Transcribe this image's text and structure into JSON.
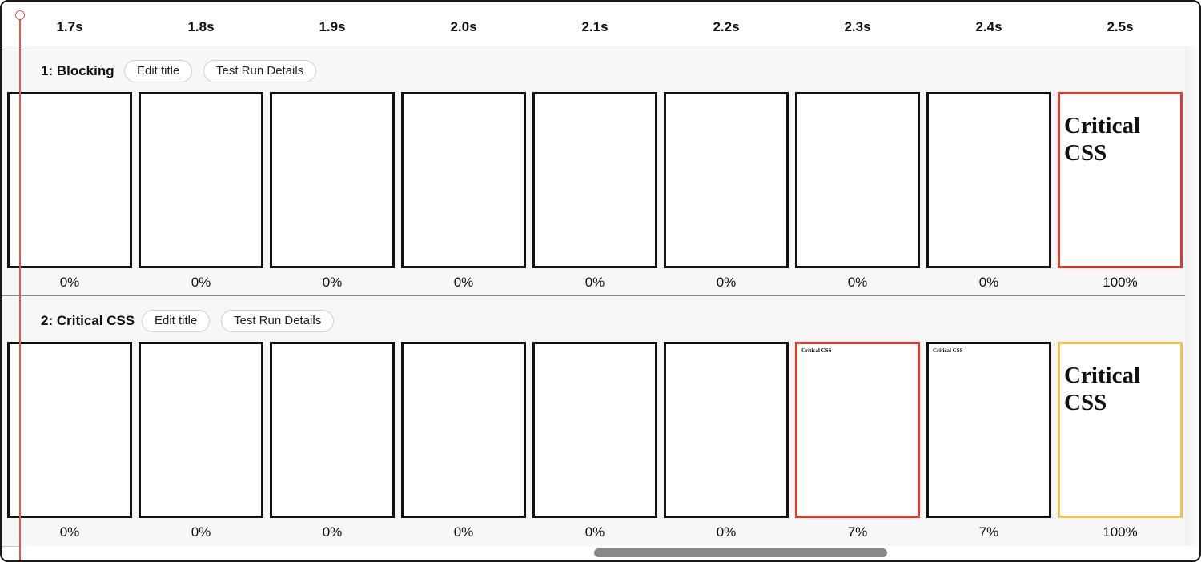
{
  "timeline": {
    "ticks": [
      "1.7s",
      "1.8s",
      "1.9s",
      "2.0s",
      "2.1s",
      "2.2s",
      "2.3s",
      "2.4s",
      "2.5s"
    ]
  },
  "rows": [
    {
      "title": "1: Blocking",
      "edit_label": "Edit title",
      "details_label": "Test Run Details",
      "frames": [
        {
          "percent": "0%",
          "border": "black",
          "content": ""
        },
        {
          "percent": "0%",
          "border": "black",
          "content": ""
        },
        {
          "percent": "0%",
          "border": "black",
          "content": ""
        },
        {
          "percent": "0%",
          "border": "black",
          "content": ""
        },
        {
          "percent": "0%",
          "border": "black",
          "content": ""
        },
        {
          "percent": "0%",
          "border": "black",
          "content": ""
        },
        {
          "percent": "0%",
          "border": "black",
          "content": ""
        },
        {
          "percent": "0%",
          "border": "black",
          "content": ""
        },
        {
          "percent": "100%",
          "border": "red",
          "content": "Critical CSS"
        }
      ]
    },
    {
      "title": "2: Critical CSS",
      "edit_label": "Edit title",
      "details_label": "Test Run Details",
      "frames": [
        {
          "percent": "0%",
          "border": "black",
          "content": ""
        },
        {
          "percent": "0%",
          "border": "black",
          "content": ""
        },
        {
          "percent": "0%",
          "border": "black",
          "content": ""
        },
        {
          "percent": "0%",
          "border": "black",
          "content": ""
        },
        {
          "percent": "0%",
          "border": "black",
          "content": ""
        },
        {
          "percent": "0%",
          "border": "black",
          "content": ""
        },
        {
          "percent": "7%",
          "border": "red",
          "content": "Critical CSS"
        },
        {
          "percent": "7%",
          "border": "black",
          "content": "Critical CSS"
        },
        {
          "percent": "100%",
          "border": "yellow",
          "content": "Critical CSS"
        }
      ]
    }
  ],
  "colors": {
    "marker": "#e05a4a",
    "frame_red": "#e03a2b",
    "frame_yellow": "#f4c150",
    "frame_black": "#111111"
  }
}
